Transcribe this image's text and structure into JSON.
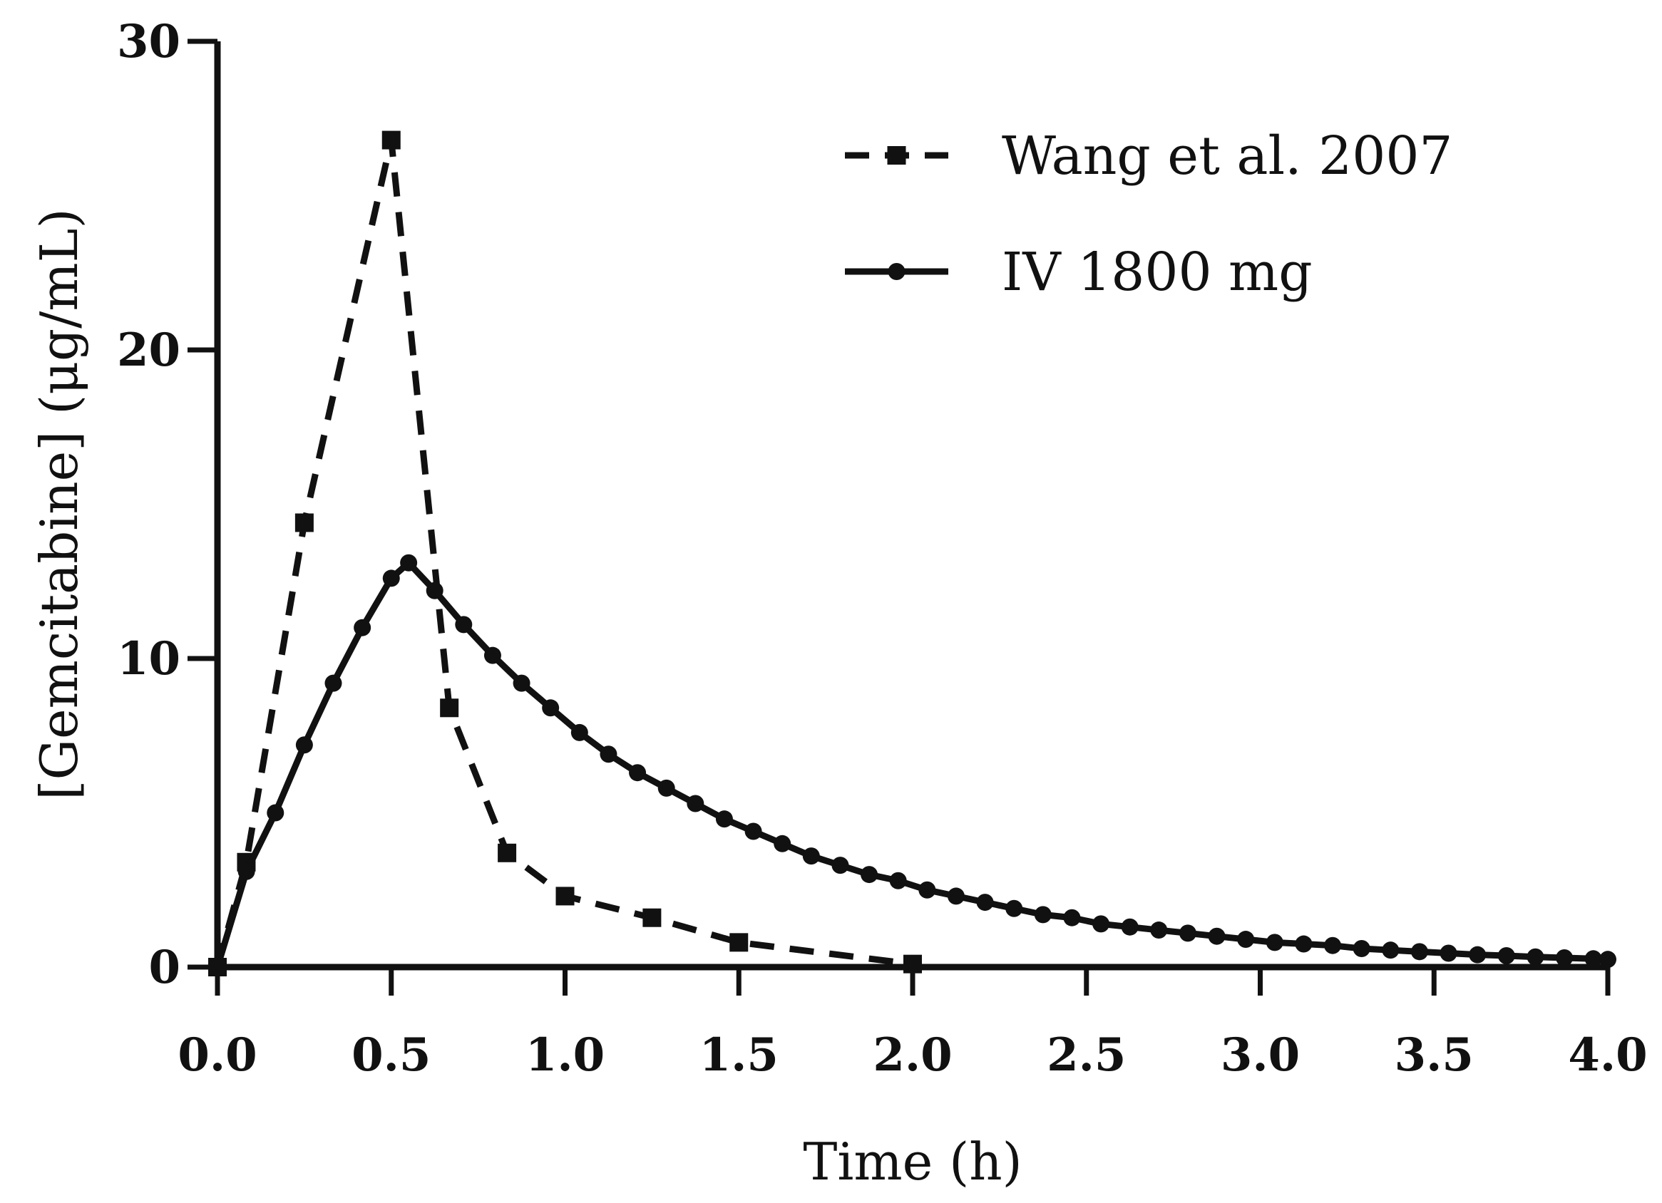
{
  "chart_data": {
    "type": "line",
    "title": "",
    "xlabel": "Time (h)",
    "ylabel": "[Gemcitabine] (μg/mL)",
    "xlim": [
      0,
      4
    ],
    "ylim": [
      0,
      30
    ],
    "xticks": [
      "0.0",
      "0.5",
      "1.0",
      "1.5",
      "2.0",
      "2.5",
      "3.0",
      "3.5",
      "4.0"
    ],
    "yticks": [
      "0",
      "10",
      "20",
      "30"
    ],
    "grid": false,
    "legend_position": "top-right",
    "series": [
      {
        "name": "Wang et al. 2007",
        "style": "dashed",
        "marker": "square",
        "color": "#111111",
        "x": [
          0,
          0.083,
          0.25,
          0.5,
          0.667,
          0.833,
          1.0,
          1.25,
          1.5,
          2.0
        ],
        "y": [
          0,
          3.4,
          14.4,
          26.8,
          8.4,
          3.7,
          2.3,
          1.6,
          0.8,
          0.1
        ]
      },
      {
        "name": "IV 1800 mg",
        "style": "solid",
        "marker": "circle",
        "color": "#111111",
        "x": [
          0,
          0.0833,
          0.1667,
          0.25,
          0.3333,
          0.4167,
          0.5,
          0.55,
          0.625,
          0.7083,
          0.7917,
          0.875,
          0.9583,
          1.0417,
          1.125,
          1.2083,
          1.2917,
          1.375,
          1.4583,
          1.5417,
          1.625,
          1.7083,
          1.7917,
          1.875,
          1.9583,
          2.0417,
          2.125,
          2.2083,
          2.2917,
          2.375,
          2.4583,
          2.5417,
          2.625,
          2.7083,
          2.7917,
          2.875,
          2.9583,
          3.0417,
          3.125,
          3.2083,
          3.2917,
          3.375,
          3.4583,
          3.5417,
          3.625,
          3.7083,
          3.7917,
          3.875,
          3.9583,
          4.0
        ],
        "y": [
          0,
          3.1,
          5.0,
          7.2,
          9.2,
          11.0,
          12.6,
          13.1,
          12.2,
          11.1,
          10.1,
          9.2,
          8.4,
          7.6,
          6.9,
          6.3,
          5.8,
          5.3,
          4.8,
          4.4,
          4.0,
          3.6,
          3.3,
          3.0,
          2.8,
          2.5,
          2.3,
          2.1,
          1.9,
          1.7,
          1.6,
          1.4,
          1.3,
          1.2,
          1.1,
          1.0,
          0.9,
          0.8,
          0.75,
          0.7,
          0.6,
          0.55,
          0.5,
          0.45,
          0.4,
          0.37,
          0.33,
          0.3,
          0.27,
          0.25
        ]
      }
    ]
  }
}
